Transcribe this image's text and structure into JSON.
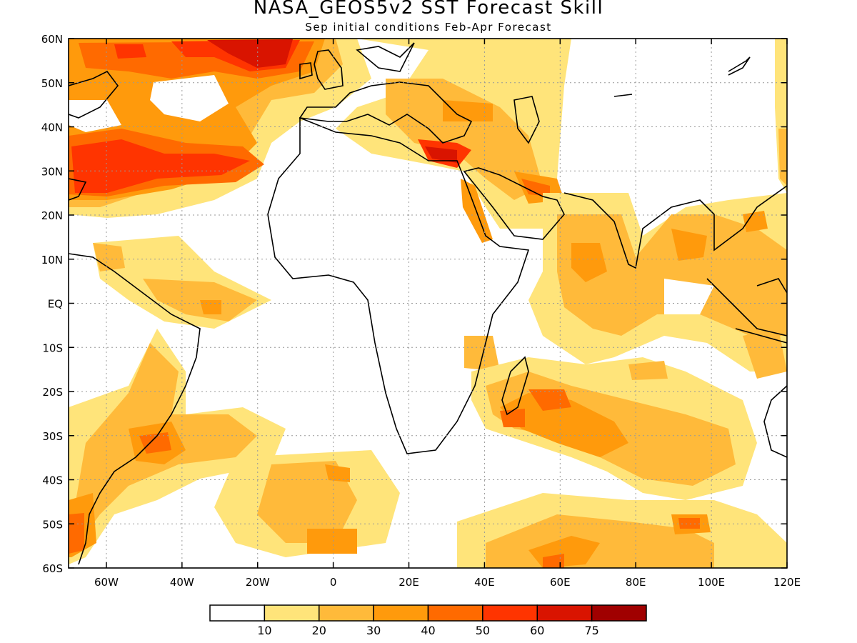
{
  "map": {
    "title": "NASA_GEOS5v2 SST Forecast Skill",
    "subtitle": "Sep initial conditions  Feb-Apr Forecast",
    "lon_range": [
      -70,
      120
    ],
    "lat_range": [
      -60,
      60
    ],
    "lat_labels": [
      "60N",
      "50N",
      "40N",
      "30N",
      "20N",
      "10N",
      "EQ",
      "10S",
      "20S",
      "30S",
      "40S",
      "50S",
      "60S"
    ],
    "lon_labels": [
      "60W",
      "40W",
      "20W",
      "0",
      "20E",
      "40E",
      "60E",
      "80E",
      "100E",
      "120E"
    ]
  },
  "colorbar": {
    "colors": [
      "#ffffff",
      "#ffe47a",
      "#ffba3a",
      "#ff9a0c",
      "#ff6a00",
      "#ff3400",
      "#d91400",
      "#a00000"
    ],
    "labels": [
      "10",
      "20",
      "30",
      "40",
      "50",
      "60",
      "75"
    ]
  },
  "regions": [
    {
      "name": "north-atlantic-high-skill",
      "level": 5
    },
    {
      "name": "british-isles-skill",
      "level": 6
    },
    {
      "name": "eastern-mediterranean-skill",
      "level": 5
    },
    {
      "name": "red-sea-skill",
      "level": 4
    },
    {
      "name": "persian-gulf-skill",
      "level": 4
    },
    {
      "name": "arabian-sea-skill",
      "level": 3
    },
    {
      "name": "bay-of-bengal-skill",
      "level": 3
    },
    {
      "name": "equatorial-atlantic-skill",
      "level": 2
    },
    {
      "name": "south-atlantic-skill",
      "level": 3
    },
    {
      "name": "south-indian-ocean-skill",
      "level": 3
    },
    {
      "name": "southern-ocean-skill",
      "level": 3
    },
    {
      "name": "madagascar-channel-skill",
      "level": 4
    }
  ]
}
